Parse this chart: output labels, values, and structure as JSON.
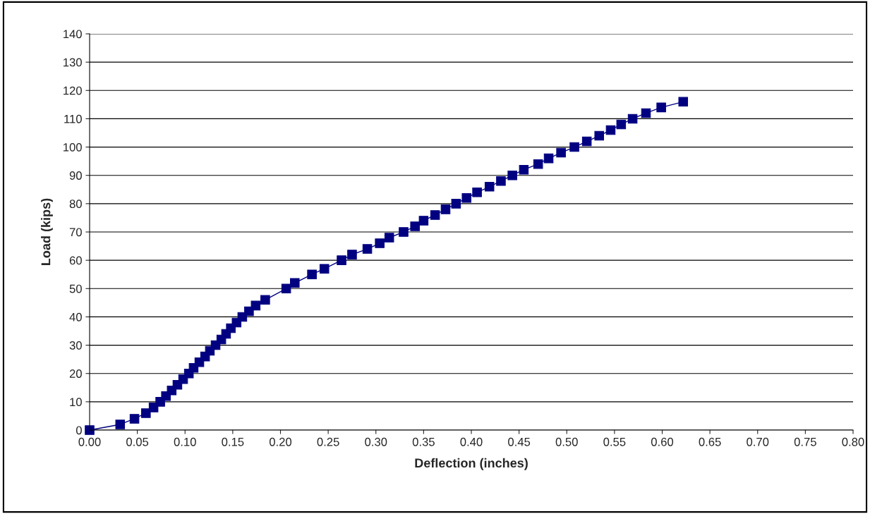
{
  "chart_data": {
    "type": "line",
    "xlabel": "Deflection (inches)",
    "ylabel": "Load (kips)",
    "x": [
      0,
      0.032,
      0.047,
      0.059,
      0.067,
      0.074,
      0.08,
      0.086,
      0.092,
      0.098,
      0.104,
      0.109,
      0.115,
      0.121,
      0.126,
      0.132,
      0.138,
      0.143,
      0.148,
      0.154,
      0.16,
      0.167,
      0.174,
      0.184,
      0.206,
      0.215,
      0.233,
      0.246,
      0.264,
      0.275,
      0.291,
      0.304,
      0.314,
      0.329,
      0.341,
      0.35,
      0.362,
      0.373,
      0.384,
      0.395,
      0.406,
      0.419,
      0.431,
      0.443,
      0.455,
      0.47,
      0.481,
      0.494,
      0.508,
      0.521,
      0.534,
      0.546,
      0.557,
      0.569,
      0.583,
      0.599,
      0.622
    ],
    "series": [
      {
        "color": "#000080",
        "values": [
          0,
          2,
          4,
          6,
          8,
          10,
          12,
          14,
          16,
          18,
          20,
          22,
          24,
          26,
          28,
          30,
          32,
          34,
          36,
          38,
          40,
          42,
          44,
          46,
          50,
          52,
          55,
          57,
          60,
          62,
          64,
          66,
          68,
          70,
          72,
          74,
          76,
          78,
          80,
          82,
          84,
          86,
          88,
          90,
          92,
          94,
          96,
          98,
          100,
          102,
          104,
          106,
          108,
          110,
          112,
          114,
          116
        ]
      }
    ],
    "xlim": [
      0,
      0.8
    ],
    "xticks": [
      {
        "value": 0,
        "label": "0.00"
      },
      {
        "value": 0.05,
        "label": "0.05"
      },
      {
        "value": 0.1,
        "label": "0.10"
      },
      {
        "value": 0.15,
        "label": "0.15"
      },
      {
        "value": 0.2,
        "label": "0.20"
      },
      {
        "value": 0.25,
        "label": "0.25"
      },
      {
        "value": 0.3,
        "label": "0.30"
      },
      {
        "value": 0.35,
        "label": "0.35"
      },
      {
        "value": 0.4,
        "label": "0.40"
      },
      {
        "value": 0.45,
        "label": "0.45"
      },
      {
        "value": 0.5,
        "label": "0.50"
      },
      {
        "value": 0.55,
        "label": "0.55"
      },
      {
        "value": 0.6,
        "label": "0.60"
      },
      {
        "value": 0.65,
        "label": "0.65"
      },
      {
        "value": 0.7,
        "label": "0.70"
      },
      {
        "value": 0.75,
        "label": "0.75"
      },
      {
        "value": 0.8,
        "label": "0.80"
      }
    ],
    "ylim": [
      0,
      140
    ],
    "yticks": [
      0,
      10,
      20,
      30,
      40,
      50,
      60,
      70,
      80,
      90,
      100,
      110,
      120,
      130,
      140
    ],
    "grid": "y",
    "marker": "square",
    "line_style": "solid",
    "legend": false
  }
}
